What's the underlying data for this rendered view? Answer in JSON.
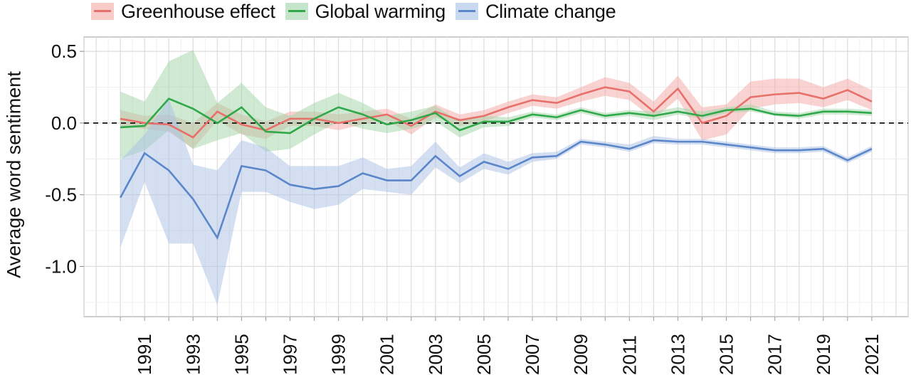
{
  "chart_data": {
    "type": "line",
    "title": "",
    "xlabel": "",
    "ylabel": "Average word sentiment",
    "xlim": [
      1988.5,
      2022.5
    ],
    "ylim": [
      -1.35,
      0.6
    ],
    "yticks": [
      0.5,
      0.0,
      -0.5,
      -1.0
    ],
    "ytick_labels": [
      "0.5",
      "0.0",
      "-0.5",
      "-1.0"
    ],
    "xtick_labels": [
      "1991",
      "1993",
      "1995",
      "1997",
      "1999",
      "2001",
      "2003",
      "2005",
      "2007",
      "2009",
      "2011",
      "2013",
      "2015",
      "2017",
      "2019",
      "2021"
    ],
    "grid": true,
    "reference_line": {
      "y": 0.0,
      "style": "dashed",
      "color": "#000000"
    },
    "legend_position": "top",
    "x": [
      1990,
      1991,
      1992,
      1993,
      1994,
      1995,
      1996,
      1997,
      1998,
      1999,
      2000,
      2001,
      2002,
      2003,
      2004,
      2005,
      2006,
      2007,
      2008,
      2009,
      2010,
      2011,
      2012,
      2013,
      2014,
      2015,
      2016,
      2017,
      2018,
      2019,
      2020,
      2021
    ],
    "series": [
      {
        "name": "Greenhouse effect",
        "color": "#e8706a",
        "band_color": "#f4a7a3",
        "values": [
          0.03,
          0.0,
          -0.01,
          -0.1,
          0.08,
          -0.01,
          -0.05,
          0.03,
          0.03,
          0.0,
          0.03,
          0.06,
          -0.02,
          0.08,
          0.02,
          0.05,
          0.11,
          0.16,
          0.14,
          0.2,
          0.25,
          0.22,
          0.08,
          0.24,
          0.0,
          0.05,
          0.18,
          0.2,
          0.21,
          0.17,
          0.23,
          0.15
        ],
        "lower": [
          -0.02,
          -0.04,
          -0.06,
          -0.18,
          0.02,
          -0.08,
          -0.11,
          -0.02,
          -0.02,
          -0.05,
          -0.01,
          0.02,
          -0.08,
          0.04,
          -0.02,
          0.01,
          0.07,
          0.12,
          0.1,
          0.15,
          0.19,
          0.16,
          0.03,
          0.17,
          -0.12,
          -0.08,
          0.1,
          0.13,
          0.14,
          0.11,
          0.16,
          0.09
        ],
        "upper": [
          0.09,
          0.05,
          0.06,
          0.0,
          0.14,
          0.06,
          0.01,
          0.08,
          0.08,
          0.06,
          0.08,
          0.1,
          0.03,
          0.13,
          0.06,
          0.09,
          0.15,
          0.2,
          0.18,
          0.25,
          0.32,
          0.28,
          0.15,
          0.33,
          0.11,
          0.13,
          0.29,
          0.31,
          0.31,
          0.25,
          0.31,
          0.23
        ]
      },
      {
        "name": "Global warming",
        "color": "#2fa84a",
        "band_color": "#9fd3a6",
        "values": [
          -0.03,
          -0.02,
          0.17,
          0.1,
          0.0,
          0.11,
          -0.06,
          -0.07,
          0.03,
          0.11,
          0.06,
          -0.01,
          0.02,
          0.07,
          -0.05,
          0.01,
          0.01,
          0.06,
          0.04,
          0.09,
          0.05,
          0.07,
          0.05,
          0.08,
          0.05,
          0.09,
          0.1,
          0.06,
          0.05,
          0.08,
          0.08,
          0.07
        ],
        "lower": [
          -0.25,
          -0.19,
          -0.05,
          -0.18,
          -0.12,
          -0.07,
          -0.2,
          -0.18,
          -0.08,
          0.01,
          -0.04,
          -0.07,
          -0.04,
          0.01,
          -0.1,
          -0.03,
          -0.02,
          0.04,
          0.02,
          0.07,
          0.03,
          0.05,
          0.02,
          0.06,
          0.03,
          0.07,
          0.08,
          0.05,
          0.03,
          0.06,
          0.06,
          0.05
        ],
        "upper": [
          0.22,
          0.15,
          0.43,
          0.51,
          0.14,
          0.28,
          0.11,
          0.05,
          0.14,
          0.21,
          0.14,
          0.05,
          0.08,
          0.12,
          0.01,
          0.05,
          0.04,
          0.08,
          0.06,
          0.11,
          0.07,
          0.09,
          0.08,
          0.11,
          0.08,
          0.11,
          0.13,
          0.08,
          0.07,
          0.1,
          0.1,
          0.09
        ]
      },
      {
        "name": "Climate change",
        "color": "#5b86c9",
        "band_color": "#a9bfe6",
        "values": [
          -0.52,
          -0.21,
          -0.33,
          -0.53,
          -0.8,
          -0.3,
          -0.33,
          -0.43,
          -0.46,
          -0.44,
          -0.35,
          -0.4,
          -0.4,
          -0.23,
          -0.37,
          -0.27,
          -0.32,
          -0.24,
          -0.23,
          -0.13,
          -0.15,
          -0.18,
          -0.12,
          -0.13,
          -0.13,
          -0.15,
          -0.17,
          -0.19,
          -0.19,
          -0.18,
          -0.26,
          -0.18
        ],
        "lower": [
          -0.87,
          -0.41,
          -0.84,
          -0.84,
          -1.27,
          -0.48,
          -0.48,
          -0.55,
          -0.6,
          -0.57,
          -0.46,
          -0.48,
          -0.5,
          -0.31,
          -0.42,
          -0.32,
          -0.36,
          -0.27,
          -0.25,
          -0.15,
          -0.17,
          -0.2,
          -0.14,
          -0.15,
          -0.15,
          -0.17,
          -0.19,
          -0.21,
          -0.21,
          -0.2,
          -0.28,
          -0.2
        ],
        "upper": [
          -0.26,
          -0.08,
          0.17,
          -0.29,
          -0.33,
          -0.12,
          -0.17,
          -0.3,
          -0.3,
          -0.3,
          -0.24,
          -0.32,
          -0.3,
          -0.13,
          -0.31,
          -0.21,
          -0.27,
          -0.21,
          -0.2,
          -0.11,
          -0.13,
          -0.15,
          -0.09,
          -0.11,
          -0.11,
          -0.13,
          -0.15,
          -0.17,
          -0.17,
          -0.16,
          -0.24,
          -0.16
        ]
      }
    ]
  }
}
